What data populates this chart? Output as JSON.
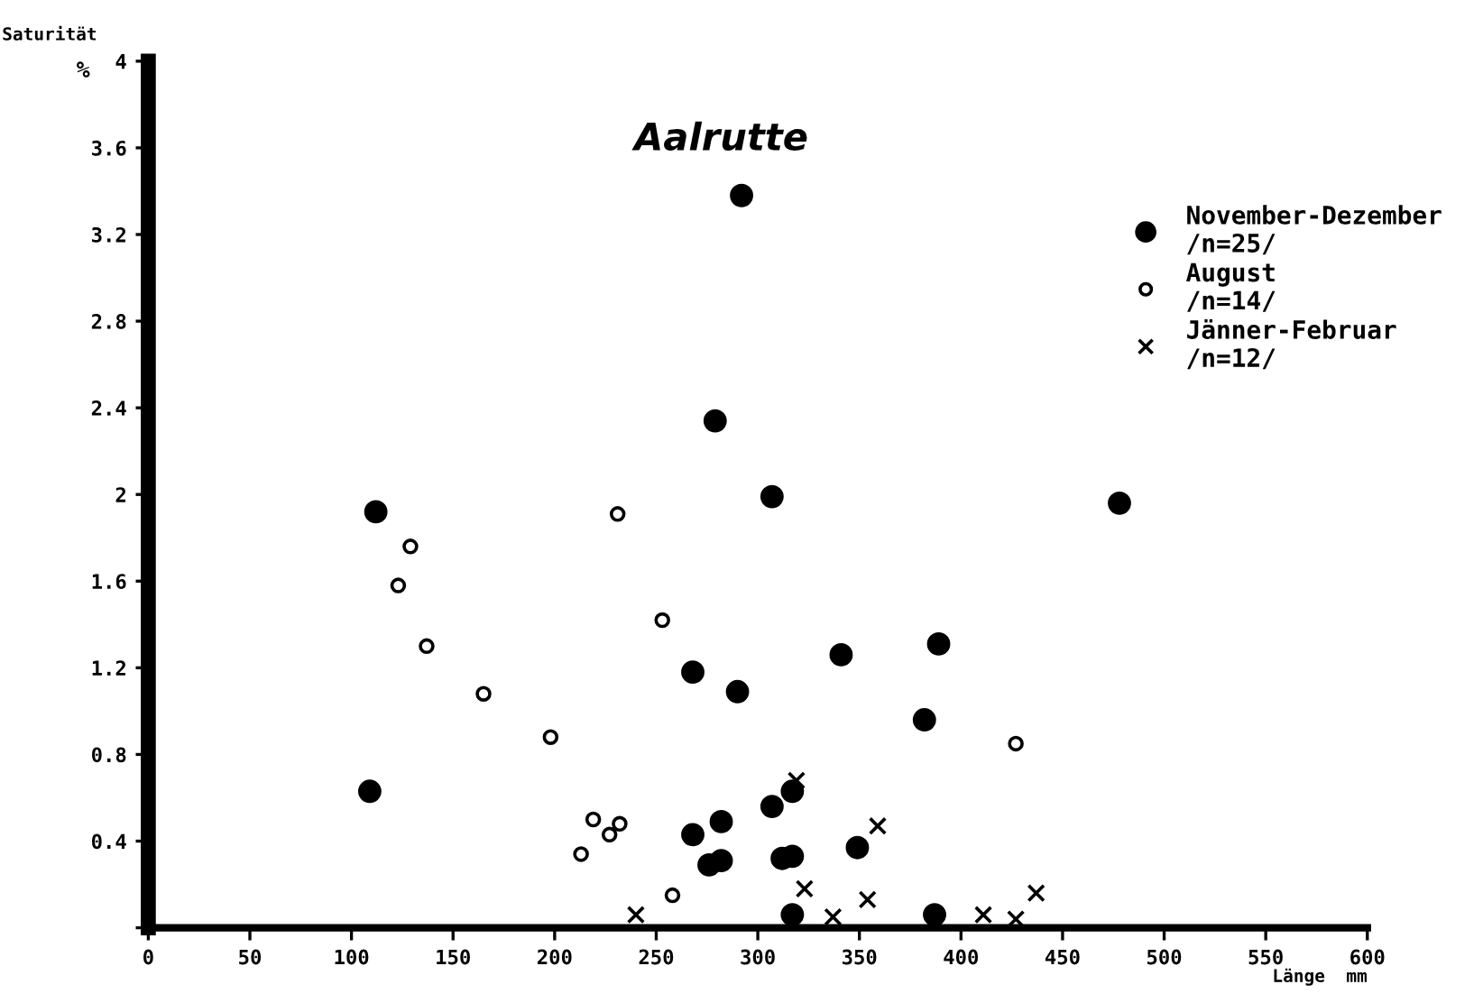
{
  "chart_data": {
    "type": "scatter",
    "title": "Aalrutte",
    "xlabel": "Länge  mm",
    "ylabel": "Saturität",
    "xlim": [
      0,
      600
    ],
    "xticks": [
      0,
      50,
      100,
      150,
      200,
      250,
      300,
      350,
      400,
      450,
      500,
      550,
      600
    ],
    "ylim": [
      0,
      4
    ],
    "yticks": [
      {
        "value": 0,
        "label": null
      },
      0.4,
      0.8,
      1.2,
      1.6,
      2,
      2.4,
      2.8,
      3.2,
      3.6,
      4
    ],
    "grid": false,
    "legend": "top right",
    "annotations": [
      "%",
      "/n=25/",
      "/n=14/",
      "/n=12/"
    ],
    "series": [
      {
        "name": "November-Dezember",
        "color": "#000000",
        "marker": "circle",
        "x": [
          292,
          279,
          307,
          478,
          112,
          389,
          341,
          268,
          290,
          382,
          109,
          317,
          307,
          282,
          268,
          349,
          282,
          276,
          312,
          317,
          317,
          387
        ],
        "values": [
          3.38,
          2.34,
          1.99,
          1.96,
          1.92,
          1.31,
          1.26,
          1.18,
          1.09,
          0.96,
          0.63,
          0.63,
          0.56,
          0.49,
          0.43,
          0.37,
          0.31,
          0.29,
          0.32,
          0.33,
          0.06,
          0.06
        ]
      },
      {
        "name": "August",
        "color": "#ffffff",
        "marker": "circle",
        "x": [
          231,
          129,
          123,
          137,
          253,
          165,
          198,
          219,
          232,
          227,
          213,
          258,
          427
        ],
        "values": [
          1.91,
          1.76,
          1.58,
          1.3,
          1.42,
          1.08,
          0.88,
          0.5,
          0.48,
          0.43,
          0.34,
          0.15,
          0.85
        ]
      },
      {
        "name": "Jänner-Februar",
        "color": "#000000",
        "marker": "cross",
        "x": [
          240,
          319,
          359,
          323,
          354,
          337,
          411,
          427,
          437
        ],
        "values": [
          0.06,
          0.68,
          0.47,
          0.18,
          0.13,
          0.05,
          0.06,
          0.04,
          0.16
        ]
      }
    ]
  }
}
